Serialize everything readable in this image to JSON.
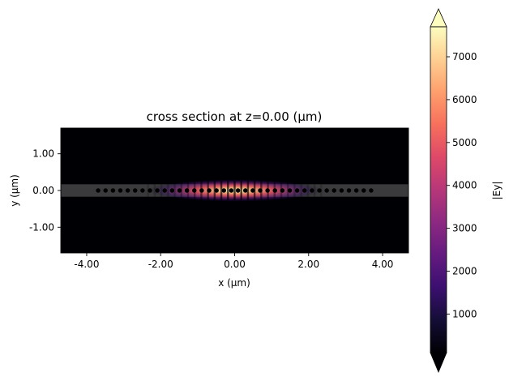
{
  "chart_data": {
    "type": "heatmap",
    "title": "cross section at z=0.00 (μm)",
    "xlabel": "x (μm)",
    "ylabel": "y (μm)",
    "xlim": [
      -4.7,
      4.7
    ],
    "ylim": [
      -1.7,
      1.7
    ],
    "x_ticks": [
      {
        "value": -4,
        "label": "-4.00"
      },
      {
        "value": -2,
        "label": "-2.00"
      },
      {
        "value": 0,
        "label": "0.00"
      },
      {
        "value": 2,
        "label": "2.00"
      },
      {
        "value": 4,
        "label": "4.00"
      }
    ],
    "y_ticks": [
      {
        "value": 1,
        "label": "1.00"
      },
      {
        "value": 0,
        "label": "0.00"
      },
      {
        "value": -1,
        "label": "-1.00"
      }
    ],
    "colorbar": {
      "label": "|Ey|",
      "colormap": "magma",
      "range": [
        100,
        7700
      ],
      "extend": "both",
      "ticks": [
        {
          "value": 1000,
          "label": "1000"
        },
        {
          "value": 2000,
          "label": "2000"
        },
        {
          "value": 3000,
          "label": "3000"
        },
        {
          "value": 4000,
          "label": "4000"
        },
        {
          "value": 5000,
          "label": "5000"
        },
        {
          "value": 6000,
          "label": "6000"
        },
        {
          "value": 7000,
          "label": "7000"
        }
      ]
    },
    "field": {
      "peak_value": 7700,
      "mode_center_x": 0.0,
      "envelope_sigma_x": 0.9,
      "envelope_sigma_y": 0.12,
      "fringe_period_x": 0.18
    },
    "waveguide": {
      "y_min": -0.17,
      "y_max": 0.17,
      "color": "#3a3a3c"
    },
    "holes": {
      "y": 0.0,
      "radius": 0.06,
      "x": [
        -3.69,
        -3.49,
        -3.29,
        -3.09,
        -2.89,
        -2.69,
        -2.49,
        -2.29,
        -2.09,
        -1.89,
        -1.69,
        -1.49,
        -1.29,
        -1.09,
        -0.89,
        -0.69,
        -0.49,
        -0.29,
        -0.09,
        0.09,
        0.29,
        0.49,
        0.69,
        0.89,
        1.09,
        1.29,
        1.49,
        1.69,
        1.89,
        2.09,
        2.29,
        2.49,
        2.69,
        2.89,
        3.09,
        3.29,
        3.49,
        3.69
      ],
      "color": "#000000"
    }
  }
}
